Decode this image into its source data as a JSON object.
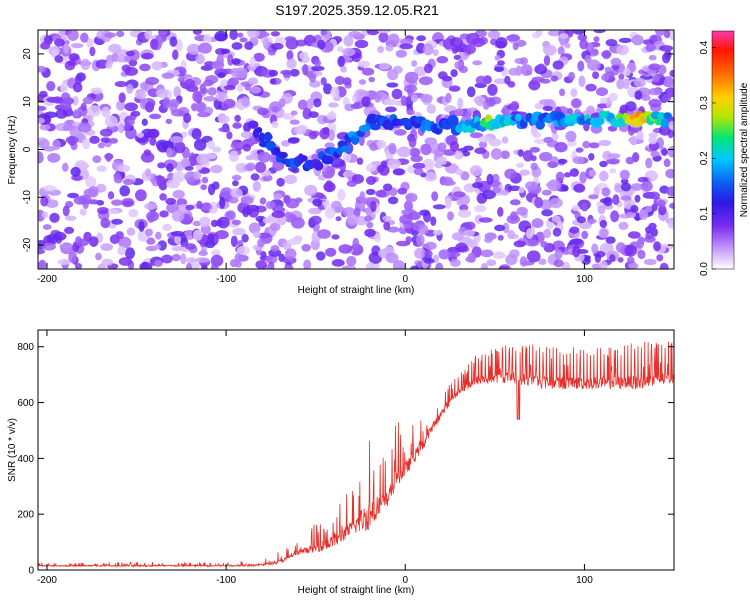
{
  "title": "S197.2025.359.12.05.R21",
  "colors": {
    "snr_line": "#e8302a",
    "frame": "#000000",
    "background": "#ffffff",
    "colormap": [
      "#ffffff",
      "#c9a0ff",
      "#7a2cf0",
      "#2a1ae6",
      "#0c5cf2",
      "#00c8ff",
      "#00e676",
      "#b6e600",
      "#ffd000",
      "#ff6a00",
      "#ff1500",
      "#ff3ab0"
    ]
  },
  "chart_data": [
    {
      "type": "heatmap",
      "title": "S197.2025.359.12.05.R21",
      "xlabel": "Height of straight line (km)",
      "ylabel": "Frequency (Hz)",
      "xlim": [
        -205,
        150
      ],
      "ylim": [
        -25,
        25
      ],
      "xticks": [
        -200,
        -100,
        0,
        100
      ],
      "yticks": [
        -20,
        -10,
        0,
        10,
        20
      ],
      "colorbar": {
        "label": "Normalized spectral amplitude",
        "range": [
          0,
          0.43
        ],
        "ticks": [
          0.0,
          0.1,
          0.2,
          0.3,
          0.4
        ],
        "tick_labels": [
          "0.0",
          "0.1",
          "0.2",
          "0.3",
          "0.4"
        ]
      },
      "background_amplitude": 0.07,
      "ridge": {
        "description_points": [
          {
            "x": -85,
            "y": 4.5,
            "amp": 0.12
          },
          {
            "x": -75,
            "y": 1,
            "amp": 0.14
          },
          {
            "x": -65,
            "y": -2.5,
            "amp": 0.15
          },
          {
            "x": -55,
            "y": -3,
            "amp": 0.13
          },
          {
            "x": -45,
            "y": -2,
            "amp": 0.14
          },
          {
            "x": -35,
            "y": 0,
            "amp": 0.16
          },
          {
            "x": -28,
            "y": 3,
            "amp": 0.18
          },
          {
            "x": -20,
            "y": 5.5,
            "amp": 0.16
          },
          {
            "x": -5,
            "y": 6,
            "amp": 0.15
          },
          {
            "x": 10,
            "y": 5.5,
            "amp": 0.16
          },
          {
            "x": 25,
            "y": 5,
            "amp": 0.17
          },
          {
            "x": 40,
            "y": 5.5,
            "amp": 0.2
          },
          {
            "x": 48,
            "y": 5.5,
            "amp": 0.27
          },
          {
            "x": 60,
            "y": 6,
            "amp": 0.18
          },
          {
            "x": 80,
            "y": 6,
            "amp": 0.18
          },
          {
            "x": 100,
            "y": 6,
            "amp": 0.2
          },
          {
            "x": 118,
            "y": 6.5,
            "amp": 0.22
          },
          {
            "x": 128,
            "y": 6.5,
            "amp": 0.38
          },
          {
            "x": 140,
            "y": 6.5,
            "amp": 0.24
          },
          {
            "x": 148,
            "y": 6.5,
            "amp": 0.2
          }
        ]
      }
    },
    {
      "type": "line",
      "title": "",
      "xlabel": "Height of straight line (km)",
      "ylabel": "SNR (10 * v/v)",
      "xlim": [
        -205,
        150
      ],
      "ylim": [
        0,
        860
      ],
      "xticks": [
        -200,
        -100,
        0,
        100
      ],
      "yticks": [
        0,
        200,
        400,
        600,
        800
      ],
      "series": [
        {
          "x": [
            -205,
            -150,
            -100,
            -80,
            -70,
            -60,
            -50,
            -40,
            -30,
            -20,
            -10,
            -5,
            0,
            10,
            20,
            30,
            40,
            50,
            60,
            70,
            80,
            90,
            100,
            110,
            120,
            130,
            140,
            150
          ],
          "values": [
            15,
            15,
            15,
            18,
            30,
            60,
            80,
            100,
            150,
            200,
            250,
            330,
            360,
            450,
            560,
            640,
            680,
            690,
            690,
            680,
            670,
            670,
            670,
            670,
            670,
            670,
            680,
            690
          ],
          "spike_values": [
            25,
            30,
            30,
            40,
            70,
            100,
            170,
            240,
            290,
            530,
            420,
            540,
            500,
            560,
            640,
            700,
            780,
            800,
            810,
            810,
            800,
            800,
            800,
            800,
            800,
            820,
            820,
            820
          ]
        }
      ]
    }
  ]
}
